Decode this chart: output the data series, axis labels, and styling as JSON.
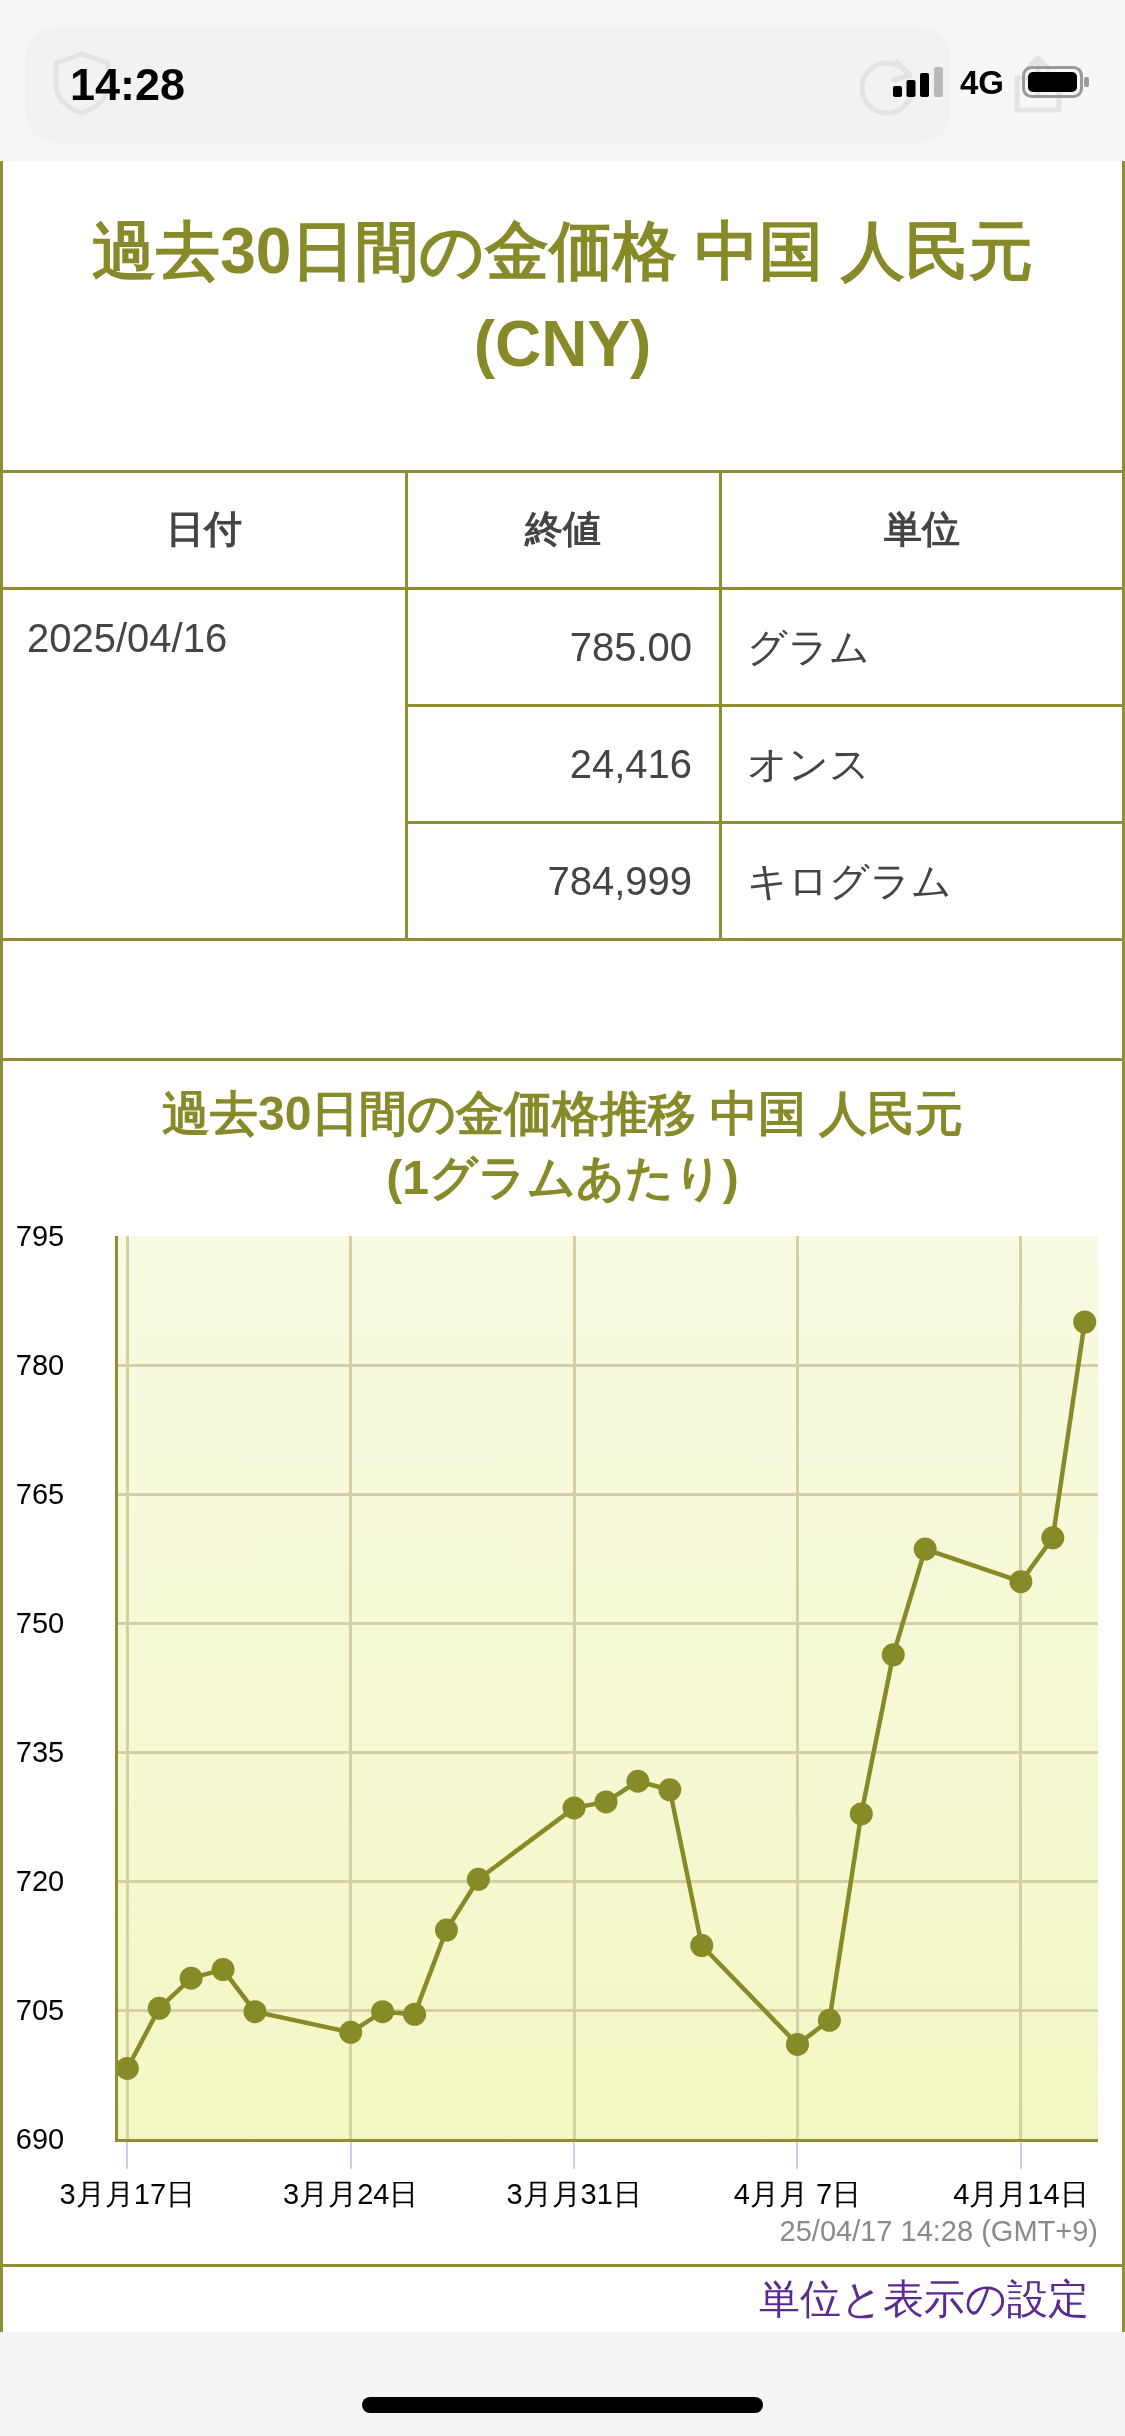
{
  "chart_data": [
    {
      "type": "other",
      "annotations": [
        "14:28",
        "4G"
      ]
    },
    {
      "type": "other",
      "title": "過去30日間の金価格 中国 人民元\n(CNY)",
      "annotations": [
        "日付",
        "終値",
        "単位",
        "2025/04/16",
        "785.00",
        "グラム",
        "24,416",
        "オンス",
        "784,999",
        "キログラム"
      ]
    },
    {
      "type": "line",
      "title": "過去30日間の金価格推移 中国 人民元\n(1グラムあたり)",
      "x": [
        "--03-17",
        "--03-18",
        "--03-19",
        "--03-20",
        "--03-21",
        "--03-24",
        "--03-25",
        "--03-26",
        "--03-27",
        "--03-28",
        "--03-31",
        "--04-01",
        "--04-02",
        "--04-03",
        "--04-04",
        "--04-07",
        "--04-08",
        "--04-09",
        "--04-10",
        "--04-11",
        "--04-14",
        "--04-15",
        "--04-16"
      ],
      "values": [
        698.2,
        705.2,
        708.7,
        709.7,
        704.8,
        702.4,
        704.8,
        704.5,
        714.3,
        720.2,
        728.5,
        729.2,
        731.6,
        730.6,
        712.5,
        701.0,
        703.8,
        727.8,
        746.3,
        758.6,
        754.8,
        759.9,
        785.0
      ],
      "color": "#868b27",
      "marker": "circle",
      "line_style": "solid",
      "grid": true,
      "xlim": [
        "--03-16T17:00",
        "--04-16T10:00"
      ],
      "xticks": [
        {
          "value": "--03-17",
          "label": "3月月17日"
        },
        {
          "value": "--03-24",
          "label": "3月月24日"
        },
        {
          "value": "--03-31",
          "label": "3月月31日"
        },
        {
          "value": "--04-07",
          "label": "4月月 7日"
        },
        {
          "value": "--04-14",
          "label": "4月月14日"
        }
      ],
      "ylim": [
        690,
        795
      ],
      "yticks": [
        690,
        705,
        720,
        735,
        750,
        765,
        780,
        795
      ],
      "annotations": [
        "25/04/17 14:28 (GMT+9)",
        "単位と表示の設定"
      ]
    }
  ]
}
